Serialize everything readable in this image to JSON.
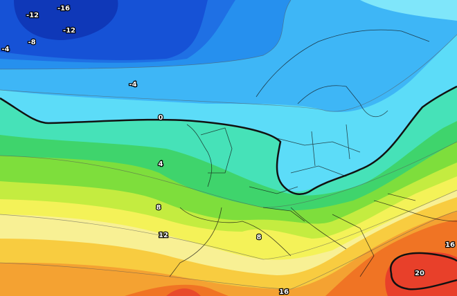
{
  "contour_labels": [
    -16,
    -12,
    -12,
    -8,
    -4,
    -4,
    0,
    4,
    8,
    12,
    8,
    16,
    16,
    20
  ]
}
